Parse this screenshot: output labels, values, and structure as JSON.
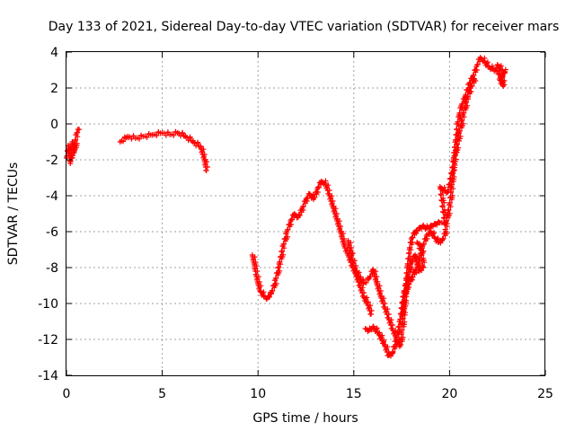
{
  "chart_data": {
    "type": "scatter",
    "title": "Day 133 of 2021, Sidereal Day-to-day VTEC variation (SDTVAR) for receiver mars",
    "xlabel": "GPS time / hours",
    "ylabel": "SDTVAR / TECUs",
    "xlim": [
      0,
      25
    ],
    "ylim": [
      -14,
      4
    ],
    "xticks": [
      "0",
      "5",
      "10",
      "15",
      "20",
      "25"
    ],
    "yticks": [
      "-14",
      "-12",
      "-10",
      "-8",
      "-6",
      "-4",
      "-2",
      "0",
      "2",
      "4"
    ],
    "grid": true,
    "legend": "none",
    "marker": "+",
    "color": "#ff0000",
    "series": [
      {
        "segments": [
          [
            [
              0.0,
              -1.9
            ],
            [
              0.1,
              -1.2
            ],
            [
              0.2,
              -2.2
            ],
            [
              0.3,
              -1.0
            ],
            [
              0.4,
              -1.6
            ],
            [
              0.5,
              -0.6
            ],
            [
              0.6,
              -0.3
            ]
          ],
          [
            [
              2.8,
              -1.0
            ],
            [
              3.2,
              -0.7
            ],
            [
              3.6,
              -0.8
            ],
            [
              4.0,
              -0.7
            ],
            [
              4.5,
              -0.6
            ],
            [
              5.0,
              -0.5
            ],
            [
              5.4,
              -0.6
            ],
            [
              5.8,
              -0.5
            ],
            [
              6.2,
              -0.7
            ],
            [
              6.6,
              -1.0
            ],
            [
              7.0,
              -1.3
            ],
            [
              7.2,
              -2.0
            ],
            [
              7.3,
              -2.6
            ]
          ],
          [
            [
              9.7,
              -7.3
            ],
            [
              9.8,
              -7.8
            ],
            [
              9.9,
              -8.4
            ],
            [
              10.0,
              -8.9
            ],
            [
              10.1,
              -9.3
            ],
            [
              10.3,
              -9.6
            ],
            [
              10.5,
              -9.7
            ],
            [
              10.7,
              -9.4
            ],
            [
              10.9,
              -8.7
            ],
            [
              11.1,
              -7.8
            ],
            [
              11.3,
              -6.8
            ],
            [
              11.5,
              -6.0
            ],
            [
              11.7,
              -5.4
            ],
            [
              11.9,
              -5.0
            ],
            [
              12.1,
              -5.2
            ],
            [
              12.3,
              -4.7
            ],
            [
              12.5,
              -4.2
            ],
            [
              12.7,
              -3.9
            ],
            [
              12.9,
              -4.2
            ],
            [
              13.1,
              -3.6
            ],
            [
              13.3,
              -3.2
            ],
            [
              13.5,
              -3.3
            ],
            [
              13.7,
              -3.9
            ],
            [
              13.9,
              -4.6
            ],
            [
              14.1,
              -5.3
            ],
            [
              14.3,
              -6.0
            ],
            [
              14.5,
              -6.8
            ],
            [
              14.7,
              -7.3
            ],
            [
              14.9,
              -7.9
            ],
            [
              15.1,
              -8.4
            ],
            [
              15.3,
              -9.0
            ],
            [
              15.5,
              -9.6
            ],
            [
              15.7,
              -10.0
            ],
            [
              15.9,
              -10.6
            ]
          ],
          [
            [
              14.7,
              -6.5
            ],
            [
              14.9,
              -7.5
            ],
            [
              15.1,
              -8.2
            ],
            [
              15.3,
              -8.6
            ],
            [
              15.5,
              -8.9
            ],
            [
              15.8,
              -8.6
            ],
            [
              16.0,
              -8.1
            ],
            [
              16.2,
              -8.9
            ],
            [
              16.4,
              -9.6
            ],
            [
              16.6,
              -10.2
            ],
            [
              16.8,
              -10.8
            ],
            [
              17.0,
              -11.4
            ],
            [
              17.2,
              -11.9
            ],
            [
              17.4,
              -12.4
            ],
            [
              17.5,
              -11.6
            ],
            [
              17.6,
              -10.4
            ],
            [
              17.7,
              -9.0
            ],
            [
              17.8,
              -7.9
            ],
            [
              17.9,
              -7.0
            ],
            [
              18.0,
              -6.4
            ],
            [
              18.2,
              -6.0
            ],
            [
              18.4,
              -5.8
            ],
            [
              18.6,
              -5.7
            ],
            [
              18.8,
              -5.8
            ],
            [
              19.0,
              -5.7
            ],
            [
              19.2,
              -5.6
            ],
            [
              19.4,
              -5.5
            ],
            [
              19.6,
              -5.5
            ],
            [
              19.8,
              -5.5
            ],
            [
              20.0,
              -4.5
            ],
            [
              20.1,
              -3.5
            ],
            [
              20.2,
              -2.0
            ],
            [
              20.3,
              -1.0
            ],
            [
              20.4,
              0.0
            ],
            [
              20.5,
              0.5
            ],
            [
              20.6,
              1.0
            ],
            [
              20.8,
              1.5
            ],
            [
              21.0,
              2.2
            ],
            [
              21.2,
              2.6
            ],
            [
              21.4,
              3.2
            ],
            [
              21.6,
              3.7
            ],
            [
              21.8,
              3.5
            ],
            [
              22.0,
              3.2
            ],
            [
              22.2,
              3.1
            ],
            [
              22.4,
              3.0
            ],
            [
              22.6,
              2.8
            ],
            [
              22.8,
              2.3
            ]
          ],
          [
            [
              15.6,
              -11.4
            ],
            [
              15.8,
              -11.5
            ],
            [
              16.0,
              -11.3
            ],
            [
              16.3,
              -11.7
            ],
            [
              16.6,
              -12.3
            ],
            [
              16.8,
              -12.9
            ],
            [
              17.0,
              -12.8
            ],
            [
              17.2,
              -12.0
            ],
            [
              17.4,
              -11.0
            ],
            [
              17.6,
              -9.4
            ],
            [
              17.8,
              -8.5
            ],
            [
              18.0,
              -7.7
            ],
            [
              18.2,
              -7.3
            ],
            [
              18.4,
              -8.2
            ],
            [
              18.6,
              -8.0
            ],
            [
              18.5,
              -7.0
            ],
            [
              18.3,
              -6.6
            ]
          ],
          [
            [
              17.5,
              -10.7
            ],
            [
              17.6,
              -9.9
            ],
            [
              17.7,
              -9.5
            ],
            [
              17.8,
              -9.0
            ],
            [
              18.0,
              -8.6
            ],
            [
              18.2,
              -8.2
            ],
            [
              18.4,
              -7.6
            ],
            [
              18.6,
              -6.8
            ],
            [
              18.8,
              -6.2
            ],
            [
              19.0,
              -6.0
            ],
            [
              19.2,
              -6.3
            ],
            [
              19.4,
              -6.6
            ],
            [
              19.6,
              -6.5
            ],
            [
              19.8,
              -6.0
            ],
            [
              19.5,
              -3.5
            ],
            [
              19.7,
              -3.7
            ],
            [
              19.9,
              -3.8
            ],
            [
              20.5,
              -0.5
            ],
            [
              20.7,
              0.5
            ],
            [
              20.9,
              1.4
            ],
            [
              21.1,
              2.0
            ],
            [
              21.3,
              2.5
            ]
          ],
          [
            [
              22.5,
              3.3
            ],
            [
              22.7,
              3.0
            ],
            [
              22.9,
              2.9
            ],
            [
              22.6,
              2.5
            ],
            [
              22.8,
              2.1
            ]
          ]
        ]
      }
    ]
  }
}
